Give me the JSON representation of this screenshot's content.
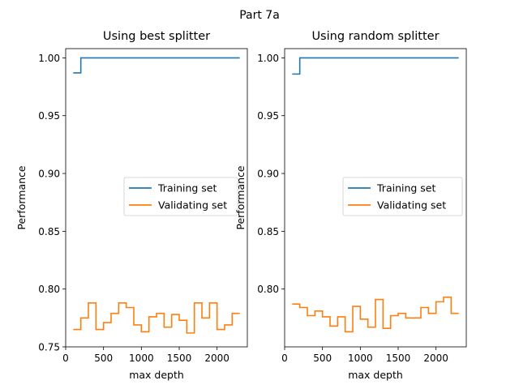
{
  "figure": {
    "suptitle": "Part 7a"
  },
  "chart_data": [
    {
      "type": "line",
      "title": "Using best splitter",
      "xlabel": "max depth",
      "ylabel": "Performance",
      "xlim": [
        0,
        2400
      ],
      "ylim": [
        0.75,
        1.008
      ],
      "xticks": [
        0,
        500,
        1000,
        1500,
        2000
      ],
      "xtick_labels": [
        "0",
        "500",
        "1000",
        "1500",
        "2000"
      ],
      "yticks": [
        0.75,
        0.8,
        0.85,
        0.9,
        0.95,
        1.0
      ],
      "ytick_labels": [
        "0.75",
        "0.80",
        "0.85",
        "0.90",
        "0.95",
        "1.00"
      ],
      "grid": false,
      "legend_position": "center-right",
      "step": "post",
      "x": [
        100,
        200,
        300,
        400,
        500,
        600,
        700,
        800,
        900,
        1000,
        1100,
        1200,
        1300,
        1400,
        1500,
        1600,
        1700,
        1800,
        1900,
        2000,
        2100,
        2200,
        2300
      ],
      "series": [
        {
          "name": "Training set",
          "color": "#1f77b4",
          "values": [
            0.987,
            1.0,
            1.0,
            1.0,
            1.0,
            1.0,
            1.0,
            1.0,
            1.0,
            1.0,
            1.0,
            1.0,
            1.0,
            1.0,
            1.0,
            1.0,
            1.0,
            1.0,
            1.0,
            1.0,
            1.0,
            1.0,
            1.0
          ]
        },
        {
          "name": "Validating set",
          "color": "#ff7f0e",
          "values": [
            0.765,
            0.775,
            0.788,
            0.765,
            0.771,
            0.779,
            0.788,
            0.784,
            0.769,
            0.763,
            0.776,
            0.779,
            0.767,
            0.778,
            0.773,
            0.762,
            0.788,
            0.775,
            0.788,
            0.765,
            0.769,
            0.779,
            0.779
          ]
        }
      ]
    },
    {
      "type": "line",
      "title": "Using random splitter",
      "xlabel": "max depth",
      "ylabel": "Performance",
      "xlim": [
        0,
        2400
      ],
      "ylim": [
        0.75,
        1.008
      ],
      "xticks": [
        0,
        500,
        1000,
        1500,
        2000
      ],
      "xtick_labels": [
        "0",
        "500",
        "1000",
        "1500",
        "2000"
      ],
      "yticks": [
        0.8,
        0.85,
        0.9,
        0.95,
        1.0
      ],
      "ytick_labels": [
        "0.80",
        "0.85",
        "0.90",
        "0.95",
        "1.00"
      ],
      "grid": false,
      "legend_position": "center-right",
      "step": "post",
      "x": [
        100,
        200,
        300,
        400,
        500,
        600,
        700,
        800,
        900,
        1000,
        1100,
        1200,
        1300,
        1400,
        1500,
        1600,
        1700,
        1800,
        1900,
        2000,
        2100,
        2200,
        2300
      ],
      "series": [
        {
          "name": "Training set",
          "color": "#1f77b4",
          "values": [
            0.986,
            1.0,
            1.0,
            1.0,
            1.0,
            1.0,
            1.0,
            1.0,
            1.0,
            1.0,
            1.0,
            1.0,
            1.0,
            1.0,
            1.0,
            1.0,
            1.0,
            1.0,
            1.0,
            1.0,
            1.0,
            1.0,
            1.0
          ]
        },
        {
          "name": "Validating set",
          "color": "#ff7f0e",
          "values": [
            0.787,
            0.784,
            0.777,
            0.781,
            0.776,
            0.768,
            0.776,
            0.763,
            0.785,
            0.774,
            0.767,
            0.791,
            0.766,
            0.777,
            0.779,
            0.775,
            0.775,
            0.784,
            0.779,
            0.789,
            0.793,
            0.779,
            0.779
          ]
        }
      ]
    }
  ]
}
